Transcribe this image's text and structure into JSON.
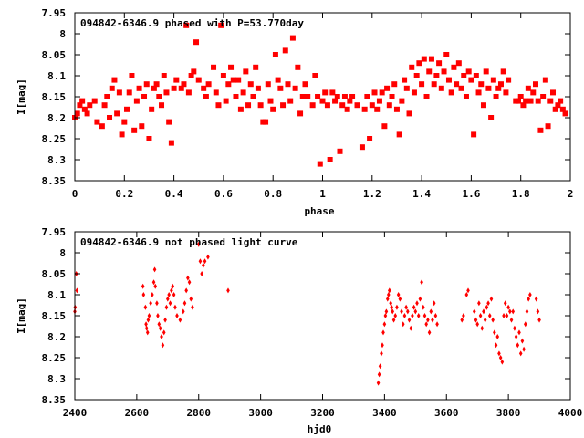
{
  "colors": {
    "marker": "#ff0000",
    "axis": "#000000",
    "background": "#ffffff"
  },
  "chart_data": [
    {
      "type": "scatter",
      "title": "094842-6346.9 phased with P=53.770day",
      "xlabel": "phase",
      "ylabel": "I[mag]",
      "xlim": [
        0,
        2
      ],
      "ylim": [
        7.95,
        8.35
      ],
      "y_inverted": true,
      "marker": "filled-square",
      "xticks": [
        "0",
        "0.2",
        "0.4",
        "0.6",
        "0.8",
        "1",
        "1.2",
        "1.4",
        "1.6",
        "1.8",
        "2"
      ],
      "yticks": [
        "7.95",
        "8",
        "8.05",
        "8.1",
        "8.15",
        "8.2",
        "8.25",
        "8.3",
        "8.35"
      ],
      "points": [
        [
          0.0,
          8.2
        ],
        [
          0.01,
          8.19
        ],
        [
          0.02,
          8.17
        ],
        [
          0.03,
          8.16
        ],
        [
          0.04,
          8.18
        ],
        [
          0.05,
          8.19
        ],
        [
          0.06,
          8.17
        ],
        [
          0.08,
          8.16
        ],
        [
          0.09,
          8.21
        ],
        [
          0.11,
          8.22
        ],
        [
          0.12,
          8.17
        ],
        [
          0.13,
          8.15
        ],
        [
          0.14,
          8.2
        ],
        [
          0.15,
          8.13
        ],
        [
          0.16,
          8.11
        ],
        [
          0.17,
          8.19
        ],
        [
          0.18,
          8.14
        ],
        [
          0.19,
          8.24
        ],
        [
          0.2,
          8.21
        ],
        [
          0.21,
          8.18
        ],
        [
          0.22,
          8.14
        ],
        [
          0.23,
          8.1
        ],
        [
          0.24,
          8.23
        ],
        [
          0.25,
          8.16
        ],
        [
          0.26,
          8.13
        ],
        [
          0.27,
          8.22
        ],
        [
          0.28,
          8.15
        ],
        [
          0.29,
          8.12
        ],
        [
          0.3,
          8.25
        ],
        [
          0.31,
          8.18
        ],
        [
          0.32,
          8.13
        ],
        [
          0.33,
          8.12
        ],
        [
          0.34,
          8.15
        ],
        [
          0.35,
          8.17
        ],
        [
          0.36,
          8.1
        ],
        [
          0.37,
          8.14
        ],
        [
          0.38,
          8.21
        ],
        [
          0.39,
          8.26
        ],
        [
          0.4,
          8.13
        ],
        [
          0.41,
          8.11
        ],
        [
          0.43,
          8.13
        ],
        [
          0.44,
          8.12
        ],
        [
          0.45,
          7.98
        ],
        [
          0.46,
          8.14
        ],
        [
          0.47,
          8.1
        ],
        [
          0.48,
          8.09
        ],
        [
          0.49,
          8.02
        ],
        [
          0.5,
          8.11
        ],
        [
          0.52,
          8.13
        ],
        [
          0.53,
          8.15
        ],
        [
          0.54,
          8.12
        ],
        [
          0.56,
          8.08
        ],
        [
          0.57,
          8.14
        ],
        [
          0.58,
          8.17
        ],
        [
          0.59,
          7.98
        ],
        [
          0.6,
          8.1
        ],
        [
          0.61,
          8.16
        ],
        [
          0.62,
          8.12
        ],
        [
          0.63,
          8.08
        ],
        [
          0.64,
          8.11
        ],
        [
          0.65,
          8.15
        ],
        [
          0.66,
          8.11
        ],
        [
          0.67,
          8.18
        ],
        [
          0.68,
          8.14
        ],
        [
          0.69,
          8.09
        ],
        [
          0.7,
          8.17
        ],
        [
          0.71,
          8.12
        ],
        [
          0.72,
          8.15
        ],
        [
          0.73,
          8.08
        ],
        [
          0.74,
          8.13
        ],
        [
          0.75,
          8.17
        ],
        [
          0.76,
          8.21
        ],
        [
          0.77,
          8.21
        ],
        [
          0.78,
          8.12
        ],
        [
          0.79,
          8.16
        ],
        [
          0.8,
          8.18
        ],
        [
          0.81,
          8.05
        ],
        [
          0.82,
          8.11
        ],
        [
          0.83,
          8.13
        ],
        [
          0.84,
          8.17
        ],
        [
          0.85,
          8.04
        ],
        [
          0.86,
          8.12
        ],
        [
          0.87,
          8.16
        ],
        [
          0.88,
          8.01
        ],
        [
          0.89,
          8.13
        ],
        [
          0.9,
          8.08
        ],
        [
          0.91,
          8.19
        ],
        [
          0.92,
          8.15
        ],
        [
          0.93,
          8.12
        ],
        [
          0.94,
          8.15
        ],
        [
          0.96,
          8.17
        ],
        [
          0.97,
          8.1
        ],
        [
          0.98,
          8.15
        ],
        [
          0.99,
          8.31
        ],
        [
          1.0,
          8.16
        ],
        [
          1.01,
          8.14
        ],
        [
          1.02,
          8.17
        ],
        [
          1.03,
          8.3
        ],
        [
          1.04,
          8.14
        ],
        [
          1.05,
          8.16
        ],
        [
          1.06,
          8.15
        ],
        [
          1.07,
          8.28
        ],
        [
          1.08,
          8.17
        ],
        [
          1.09,
          8.15
        ],
        [
          1.1,
          8.18
        ],
        [
          1.11,
          8.16
        ],
        [
          1.12,
          8.15
        ],
        [
          1.14,
          8.17
        ],
        [
          1.16,
          8.27
        ],
        [
          1.17,
          8.18
        ],
        [
          1.18,
          8.15
        ],
        [
          1.19,
          8.25
        ],
        [
          1.2,
          8.17
        ],
        [
          1.21,
          8.14
        ],
        [
          1.22,
          8.18
        ],
        [
          1.23,
          8.16
        ],
        [
          1.24,
          8.14
        ],
        [
          1.25,
          8.22
        ],
        [
          1.26,
          8.13
        ],
        [
          1.27,
          8.17
        ],
        [
          1.28,
          8.15
        ],
        [
          1.29,
          8.12
        ],
        [
          1.3,
          8.18
        ],
        [
          1.31,
          8.24
        ],
        [
          1.32,
          8.16
        ],
        [
          1.33,
          8.11
        ],
        [
          1.34,
          8.13
        ],
        [
          1.35,
          8.19
        ],
        [
          1.36,
          8.08
        ],
        [
          1.37,
          8.14
        ],
        [
          1.38,
          8.1
        ],
        [
          1.39,
          8.07
        ],
        [
          1.4,
          8.12
        ],
        [
          1.41,
          8.06
        ],
        [
          1.42,
          8.15
        ],
        [
          1.43,
          8.09
        ],
        [
          1.44,
          8.06
        ],
        [
          1.45,
          8.12
        ],
        [
          1.46,
          8.1
        ],
        [
          1.47,
          8.07
        ],
        [
          1.48,
          8.13
        ],
        [
          1.49,
          8.09
        ],
        [
          1.5,
          8.05
        ],
        [
          1.51,
          8.11
        ],
        [
          1.52,
          8.14
        ],
        [
          1.53,
          8.08
        ],
        [
          1.54,
          8.12
        ],
        [
          1.55,
          8.07
        ],
        [
          1.56,
          8.13
        ],
        [
          1.57,
          8.1
        ],
        [
          1.58,
          8.15
        ],
        [
          1.59,
          8.09
        ],
        [
          1.6,
          8.11
        ],
        [
          1.61,
          8.24
        ],
        [
          1.62,
          8.1
        ],
        [
          1.63,
          8.14
        ],
        [
          1.64,
          8.12
        ],
        [
          1.65,
          8.17
        ],
        [
          1.66,
          8.09
        ],
        [
          1.67,
          8.13
        ],
        [
          1.68,
          8.2
        ],
        [
          1.69,
          8.11
        ],
        [
          1.7,
          8.15
        ],
        [
          1.71,
          8.13
        ],
        [
          1.72,
          8.12
        ],
        [
          1.73,
          8.09
        ],
        [
          1.74,
          8.14
        ],
        [
          1.75,
          8.11
        ],
        [
          1.78,
          8.16
        ],
        [
          1.79,
          8.16
        ],
        [
          1.8,
          8.15
        ],
        [
          1.81,
          8.17
        ],
        [
          1.82,
          8.16
        ],
        [
          1.83,
          8.13
        ],
        [
          1.84,
          8.16
        ],
        [
          1.85,
          8.14
        ],
        [
          1.86,
          8.12
        ],
        [
          1.87,
          8.16
        ],
        [
          1.88,
          8.23
        ],
        [
          1.89,
          8.15
        ],
        [
          1.9,
          8.11
        ],
        [
          1.91,
          8.22
        ],
        [
          1.92,
          8.16
        ],
        [
          1.93,
          8.14
        ],
        [
          1.94,
          8.18
        ],
        [
          1.95,
          8.17
        ],
        [
          1.96,
          8.16
        ],
        [
          1.97,
          8.18
        ],
        [
          1.98,
          8.19
        ]
      ]
    },
    {
      "type": "scatter",
      "title": "094842-6346.9 not phased light curve",
      "xlabel": "hjd0",
      "ylabel": "I[mag]",
      "xlim": [
        2400,
        4000
      ],
      "ylim": [
        7.95,
        8.35
      ],
      "y_inverted": true,
      "marker": "small-diamond",
      "xticks": [
        "2400",
        "2600",
        "2800",
        "3000",
        "3200",
        "3400",
        "3600",
        "3800",
        "4000"
      ],
      "yticks": [
        "7.95",
        "8",
        "8.05",
        "8.1",
        "8.15",
        "8.2",
        "8.25",
        "8.3",
        "8.35"
      ],
      "points": [
        [
          2400,
          8.14
        ],
        [
          2401,
          8.13
        ],
        [
          2405,
          8.05
        ],
        [
          2407,
          8.09
        ],
        [
          2620,
          8.08
        ],
        [
          2622,
          8.1
        ],
        [
          2628,
          8.13
        ],
        [
          2630,
          8.17
        ],
        [
          2632,
          8.18
        ],
        [
          2635,
          8.19
        ],
        [
          2637,
          8.16
        ],
        [
          2640,
          8.15
        ],
        [
          2645,
          8.12
        ],
        [
          2650,
          8.1
        ],
        [
          2655,
          8.07
        ],
        [
          2658,
          8.04
        ],
        [
          2660,
          8.08
        ],
        [
          2665,
          8.12
        ],
        [
          2668,
          8.15
        ],
        [
          2672,
          8.17
        ],
        [
          2676,
          8.18
        ],
        [
          2680,
          8.2
        ],
        [
          2684,
          8.22
        ],
        [
          2688,
          8.19
        ],
        [
          2692,
          8.16
        ],
        [
          2696,
          8.13
        ],
        [
          2700,
          8.11
        ],
        [
          2704,
          8.1
        ],
        [
          2708,
          8.12
        ],
        [
          2712,
          8.09
        ],
        [
          2716,
          8.08
        ],
        [
          2720,
          8.1
        ],
        [
          2724,
          8.13
        ],
        [
          2730,
          8.15
        ],
        [
          2740,
          8.16
        ],
        [
          2750,
          8.14
        ],
        [
          2755,
          8.12
        ],
        [
          2760,
          8.09
        ],
        [
          2765,
          8.06
        ],
        [
          2770,
          8.07
        ],
        [
          2775,
          8.11
        ],
        [
          2780,
          8.13
        ],
        [
          2800,
          7.98
        ],
        [
          2805,
          8.02
        ],
        [
          2810,
          8.05
        ],
        [
          2815,
          8.03
        ],
        [
          2820,
          8.02
        ],
        [
          2830,
          8.01
        ],
        [
          2895,
          8.09
        ],
        [
          3380,
          8.31
        ],
        [
          3383,
          8.29
        ],
        [
          3386,
          8.27
        ],
        [
          3390,
          8.24
        ],
        [
          3393,
          8.22
        ],
        [
          3396,
          8.19
        ],
        [
          3400,
          8.17
        ],
        [
          3403,
          8.15
        ],
        [
          3406,
          8.14
        ],
        [
          3410,
          8.11
        ],
        [
          3413,
          8.1
        ],
        [
          3416,
          8.09
        ],
        [
          3420,
          8.12
        ],
        [
          3423,
          8.13
        ],
        [
          3426,
          8.14
        ],
        [
          3430,
          8.16
        ],
        [
          3435,
          8.15
        ],
        [
          3440,
          8.13
        ],
        [
          3445,
          8.1
        ],
        [
          3450,
          8.11
        ],
        [
          3455,
          8.14
        ],
        [
          3460,
          8.17
        ],
        [
          3465,
          8.15
        ],
        [
          3470,
          8.13
        ],
        [
          3475,
          8.14
        ],
        [
          3480,
          8.16
        ],
        [
          3485,
          8.18
        ],
        [
          3490,
          8.15
        ],
        [
          3495,
          8.13
        ],
        [
          3500,
          8.14
        ],
        [
          3505,
          8.12
        ],
        [
          3510,
          8.15
        ],
        [
          3515,
          8.11
        ],
        [
          3520,
          8.07
        ],
        [
          3525,
          8.13
        ],
        [
          3530,
          8.15
        ],
        [
          3535,
          8.17
        ],
        [
          3540,
          8.16
        ],
        [
          3545,
          8.19
        ],
        [
          3550,
          8.14
        ],
        [
          3555,
          8.16
        ],
        [
          3560,
          8.12
        ],
        [
          3565,
          8.15
        ],
        [
          3570,
          8.17
        ],
        [
          3650,
          8.16
        ],
        [
          3655,
          8.15
        ],
        [
          3665,
          8.1
        ],
        [
          3670,
          8.09
        ],
        [
          3690,
          8.14
        ],
        [
          3695,
          8.16
        ],
        [
          3700,
          8.17
        ],
        [
          3705,
          8.12
        ],
        [
          3710,
          8.15
        ],
        [
          3715,
          8.18
        ],
        [
          3720,
          8.14
        ],
        [
          3725,
          8.16
        ],
        [
          3730,
          8.13
        ],
        [
          3735,
          8.12
        ],
        [
          3740,
          8.15
        ],
        [
          3745,
          8.11
        ],
        [
          3750,
          8.16
        ],
        [
          3755,
          8.19
        ],
        [
          3760,
          8.22
        ],
        [
          3765,
          8.2
        ],
        [
          3770,
          8.24
        ],
        [
          3775,
          8.25
        ],
        [
          3780,
          8.26
        ],
        [
          3785,
          8.15
        ],
        [
          3790,
          8.12
        ],
        [
          3795,
          8.15
        ],
        [
          3800,
          8.13
        ],
        [
          3805,
          8.14
        ],
        [
          3810,
          8.16
        ],
        [
          3815,
          8.14
        ],
        [
          3820,
          8.18
        ],
        [
          3825,
          8.2
        ],
        [
          3830,
          8.22
        ],
        [
          3835,
          8.19
        ],
        [
          3840,
          8.24
        ],
        [
          3845,
          8.21
        ],
        [
          3850,
          8.23
        ],
        [
          3855,
          8.17
        ],
        [
          3860,
          8.14
        ],
        [
          3865,
          8.11
        ],
        [
          3870,
          8.1
        ],
        [
          3890,
          8.11
        ],
        [
          3895,
          8.14
        ],
        [
          3900,
          8.16
        ]
      ]
    }
  ]
}
